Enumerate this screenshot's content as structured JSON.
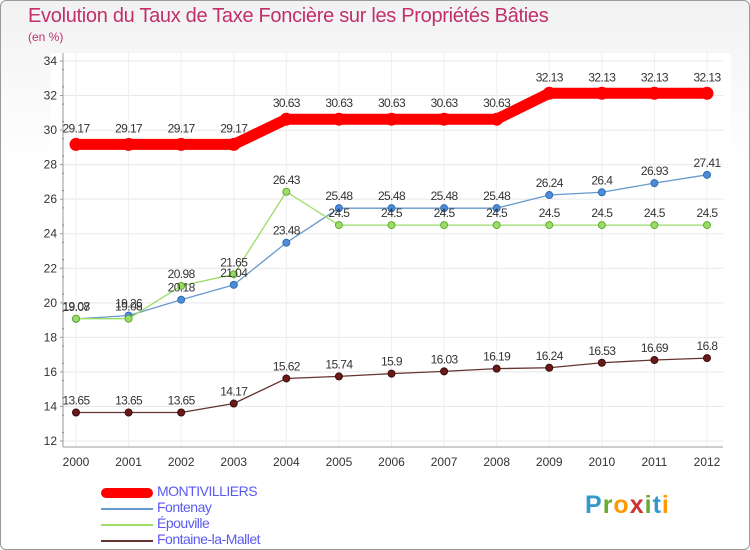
{
  "title": "Evolution du Taux de Taxe Foncière sur les Propriétés Bâties",
  "subtitle": "(en %)",
  "logo": "Proxiti",
  "chart_data": {
    "type": "line",
    "title": "Evolution du Taux de Taxe Foncière sur les Propriétés Bâties",
    "ylabel": "(en %)",
    "xlabel": "",
    "ylim": [
      12,
      34
    ],
    "yticks": [
      12,
      14,
      16,
      18,
      20,
      22,
      24,
      26,
      28,
      30,
      32,
      34
    ],
    "categories": [
      "2000",
      "2001",
      "2002",
      "2003",
      "2004",
      "2005",
      "2006",
      "2007",
      "2008",
      "2009",
      "2010",
      "2011",
      "2012"
    ],
    "series": [
      {
        "name": "MONTIVILLIERS",
        "color": "#ff0000",
        "values": [
          29.17,
          29.17,
          29.17,
          29.17,
          30.63,
          30.63,
          30.63,
          30.63,
          30.63,
          32.13,
          32.13,
          32.13,
          32.13
        ],
        "labels": [
          "29.17",
          "29.17",
          "29.17",
          "29.17",
          "30.63",
          "30.63",
          "30.63",
          "30.63",
          "30.63",
          "32.13",
          "32.13",
          "32.13",
          "32.13"
        ]
      },
      {
        "name": "Fontenay",
        "color": "#6699cc",
        "values": [
          19.07,
          19.26,
          20.18,
          21.04,
          23.48,
          25.48,
          25.48,
          25.48,
          25.48,
          26.24,
          26.4,
          26.93,
          27.41
        ],
        "labels": [
          "19.07",
          "19.26",
          "20.18",
          "21.04",
          "23.48",
          "25.48",
          "25.48",
          "25.48",
          "25.48",
          "26.24",
          "26.4",
          "26.93",
          "27.41"
        ]
      },
      {
        "name": "Épouville",
        "color": "#99dd66",
        "values": [
          19.08,
          19.08,
          20.98,
          21.65,
          26.43,
          24.5,
          24.5,
          24.5,
          24.5,
          24.5,
          24.5,
          24.5,
          24.5
        ],
        "labels": [
          "19.08",
          "19.08",
          "20.98",
          "21.65",
          "26.43",
          "24.5",
          "24.5",
          "24.5",
          "24.5",
          "24.5",
          "24.5",
          "24.5",
          "24.5"
        ]
      },
      {
        "name": "Fontaine-la-Mallet",
        "color": "#663333",
        "values": [
          13.65,
          13.65,
          13.65,
          14.17,
          15.62,
          15.74,
          15.9,
          16.03,
          16.19,
          16.24,
          16.53,
          16.69,
          16.8
        ],
        "labels": [
          "13.65",
          "13.65",
          "13.65",
          "14.17",
          "15.62",
          "15.74",
          "15.9",
          "16.03",
          "16.19",
          "16.24",
          "16.53",
          "16.69",
          "16.8"
        ]
      }
    ]
  }
}
